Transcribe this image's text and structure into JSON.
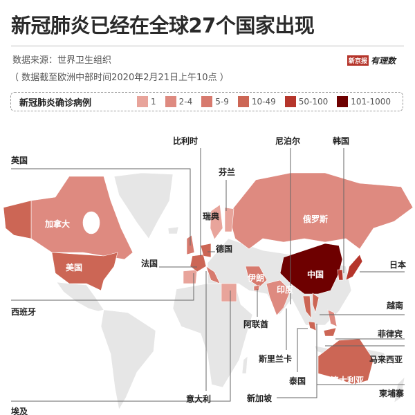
{
  "title": "新冠肺炎已经在全球27个国家出现",
  "source": "数据来源：世界卫生组织",
  "note": "（ 数据截至欧洲中部时间2020年2月21日上午10点 ）",
  "logo": {
    "brand": "新京报",
    "column": "有理数"
  },
  "legend": {
    "title": "新冠肺炎确诊病例",
    "items": [
      {
        "label": "1",
        "color": "#e8a49b"
      },
      {
        "label": "2-4",
        "color": "#de8a80"
      },
      {
        "label": "5-9",
        "color": "#d77a6e"
      },
      {
        "label": "10-49",
        "color": "#cc6655"
      },
      {
        "label": "50-100",
        "color": "#b5352b"
      },
      {
        "label": "101-1000",
        "color": "#6e0000"
      }
    ]
  },
  "map": {
    "land_color": "#e6e6e6",
    "inline_labels": {
      "canada": "加拿大",
      "usa": "美国",
      "russia": "俄罗斯",
      "china": "中国",
      "iran": "伊朗",
      "india": "印度",
      "australia": "澳大利亚"
    },
    "callouts": {
      "uk": "英国",
      "belgium": "比利时",
      "finland": "芬兰",
      "sweden": "瑞典",
      "germany": "德国",
      "france": "法国",
      "spain": "西班牙",
      "italy": "意大利",
      "egypt": "埃及",
      "uae": "阿联酋",
      "srilanka": "斯里兰卡",
      "thailand": "泰国",
      "singapore": "新加坡",
      "cambodia": "柬埔寨",
      "malaysia": "马来西亚",
      "philippines": "菲律宾",
      "vietnam": "越南",
      "japan": "日本",
      "korea": "韩国",
      "nepal": "尼泊尔"
    }
  }
}
